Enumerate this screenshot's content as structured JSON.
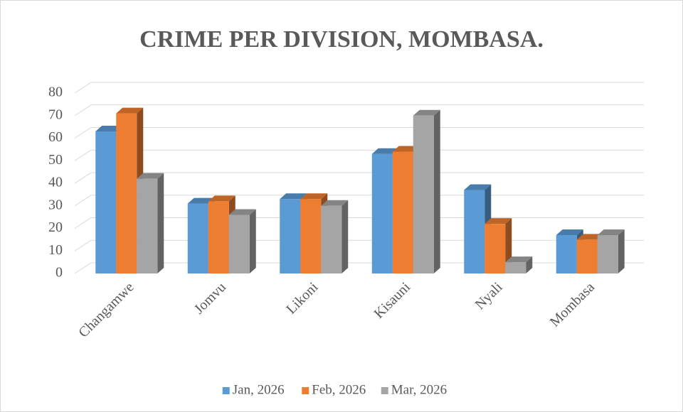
{
  "chart_data": {
    "type": "bar3d",
    "title": "CRIME PER DIVISION, MOMBASA.",
    "categories": [
      "Changamwe",
      "Jomvu",
      "Likoni",
      "Kisauni",
      "Nyali",
      "Mombasa"
    ],
    "series": [
      {
        "name": "Jan, 2026",
        "color": "#5b9bd5",
        "values": [
          63,
          31,
          33,
          53,
          37,
          17
        ]
      },
      {
        "name": "Feb, 2026",
        "color": "#ed7d31",
        "values": [
          71,
          32,
          33,
          54,
          22,
          15
        ]
      },
      {
        "name": "Mar, 2026",
        "color": "#a5a5a5",
        "values": [
          42,
          26,
          30,
          70,
          5,
          17
        ]
      }
    ],
    "ylim": [
      0,
      80
    ],
    "yticks": [
      0,
      10,
      20,
      30,
      40,
      50,
      60,
      70,
      80
    ],
    "grid": true,
    "legend": "bottom"
  }
}
